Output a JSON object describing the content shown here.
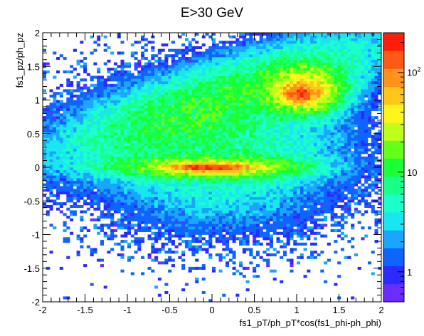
{
  "chart_data": {
    "type": "heatmap",
    "title": "E>30 GeV",
    "xlabel": "fs1_pT/ph_pT*cos(fs1_phi-ph_phi)",
    "ylabel": "fs1_pz/ph_pz",
    "xlim": [
      -2,
      2
    ],
    "ylim": [
      -2,
      2
    ],
    "x_ticks": [
      "-2",
      "-1.5",
      "-1",
      "-0.5",
      "0",
      "0.5",
      "1",
      "1.5",
      "2"
    ],
    "y_ticks": [
      "-2",
      "-1.5",
      "-1",
      "-0.5",
      "0",
      "0.5",
      "1",
      "1.5",
      "2"
    ],
    "z_scale": "log",
    "z_range": [
      0.5,
      250
    ],
    "z_ticks": [
      "1",
      "10",
      "10^2"
    ],
    "bins": [
      100,
      100
    ],
    "features": [
      {
        "name": "central band",
        "x": 0.0,
        "y": 0.0,
        "peak": 200,
        "sigma_x": 0.25,
        "sigma_y": 0.03
      },
      {
        "name": "upper cluster",
        "x": 1.05,
        "y": 1.1,
        "peak": 120,
        "sigma_x": 0.12,
        "sigma_y": 0.08
      },
      {
        "name": "diagonal ridge",
        "from": [
          -1.3,
          0.5
        ],
        "to": [
          1.9,
          1.7
        ],
        "level": 10
      }
    ],
    "colors": [
      "#6b2cff",
      "#2b2bff",
      "#0f64ff",
      "#1aa6ff",
      "#19e6f0",
      "#1bffcc",
      "#19ff8c",
      "#1aff35",
      "#66ff1a",
      "#c0ff1a",
      "#fff51a",
      "#ffc61a",
      "#ff921a",
      "#ff5a14",
      "#ff1e0a"
    ]
  }
}
